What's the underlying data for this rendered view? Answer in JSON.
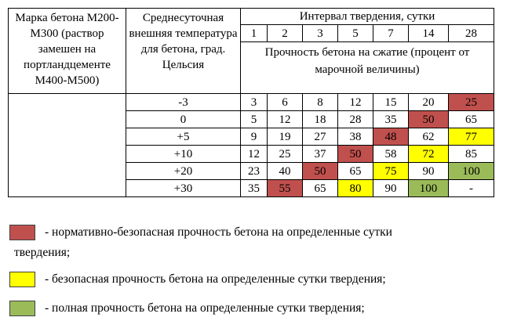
{
  "table": {
    "grade_header": "Марка бетона М200-М300 (раствор замешен на портландцементе М400-М500)",
    "temperature_header": "Среднесуточная внешняя температура для бетона, град. Цельсия",
    "interval_header": "Интервал твердения, сутки",
    "days": [
      "1",
      "2",
      "3",
      "5",
      "7",
      "14",
      "28"
    ],
    "strength_header": "Прочность бетона на сжатие (процент от марочной величины)",
    "rows": [
      {
        "temperature": "-3",
        "values": [
          "3",
          "6",
          "8",
          "12",
          "15",
          "20",
          "25"
        ]
      },
      {
        "temperature": "0",
        "values": [
          "5",
          "12",
          "18",
          "28",
          "35",
          "50",
          "65"
        ]
      },
      {
        "temperature": "+5",
        "values": [
          "9",
          "19",
          "27",
          "38",
          "48",
          "62",
          "77"
        ]
      },
      {
        "temperature": "+10",
        "values": [
          "12",
          "25",
          "37",
          "50",
          "58",
          "72",
          "85"
        ]
      },
      {
        "temperature": "+20",
        "values": [
          "23",
          "40",
          "50",
          "65",
          "75",
          "90",
          "100"
        ]
      },
      {
        "temperature": "+30",
        "values": [
          "35",
          "55",
          "65",
          "80",
          "90",
          "100",
          "-"
        ]
      }
    ],
    "highlights": {
      "0": {
        "6": "red"
      },
      "1": {
        "5": "red"
      },
      "2": {
        "4": "red",
        "6": "yellow"
      },
      "3": {
        "3": "red",
        "5": "yellow"
      },
      "4": {
        "2": "red",
        "4": "yellow",
        "6": "green"
      },
      "5": {
        "1": "red",
        "3": "yellow",
        "5": "green"
      }
    }
  },
  "colors": {
    "red": "#c0504d",
    "yellow": "#ffff00",
    "green": "#9bbb59"
  },
  "legend": {
    "red_text": "- нормативно-безопасная  прочность бетона на определенные  сутки",
    "red_text_cont": "твердения;",
    "yellow_text": "- безопасная прочность бетона на определенные сутки твердения;",
    "green_text": "- полная прочность бетона на определенные сутки твердения;"
  }
}
